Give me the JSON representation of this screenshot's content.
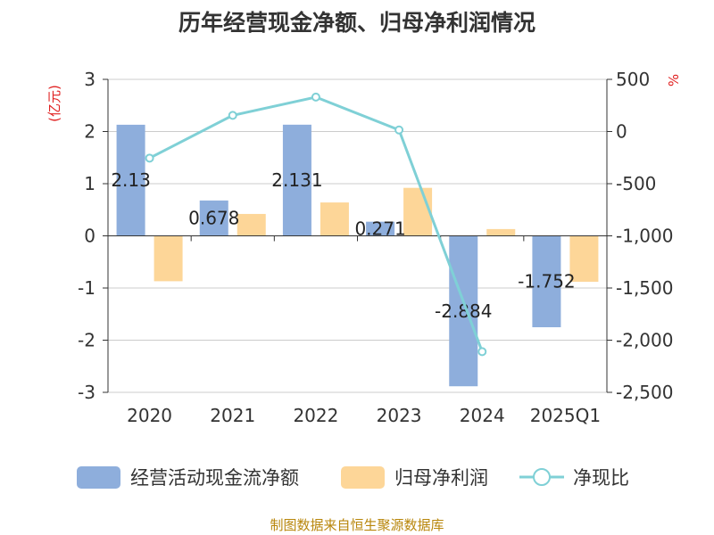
{
  "title": "历年经营现金净额、归母净利润情况",
  "source": "制图数据来自恒生聚源数据库",
  "chart_data": {
    "type": "bar",
    "categories": [
      "2020",
      "2021",
      "2022",
      "2023",
      "2024",
      "2025Q1"
    ],
    "y_left": {
      "label": "(亿元)",
      "ticks": [
        "3",
        "2",
        "1",
        "0",
        "-1",
        "-2",
        "-3"
      ],
      "range": [
        -3,
        3
      ]
    },
    "y_right": {
      "label": "%",
      "ticks": [
        "500",
        "0",
        "-500",
        "-1,000",
        "-1,500",
        "-2,000",
        "-2,500"
      ],
      "range": [
        -2500,
        500
      ]
    },
    "grid": true,
    "legend_position": "bottom",
    "series": [
      {
        "name": "经营活动现金流净额",
        "type": "bar",
        "axis": "left",
        "color": "#8eaedc",
        "values": [
          2.13,
          0.678,
          2.131,
          0.271,
          -2.884,
          -1.752
        ],
        "labels": [
          "2.13",
          "0.678",
          "2.131",
          "0.271",
          "-2.884",
          "-1.752"
        ]
      },
      {
        "name": "归母净利润",
        "type": "bar",
        "axis": "left",
        "color": "#fdd698",
        "values": [
          -0.87,
          0.42,
          0.64,
          0.92,
          0.13,
          -0.88
        ]
      },
      {
        "name": "净现比",
        "type": "line",
        "axis": "right",
        "color": "#7fd0d6",
        "values": [
          -255,
          155,
          330,
          15,
          -2110,
          null
        ]
      }
    ]
  }
}
